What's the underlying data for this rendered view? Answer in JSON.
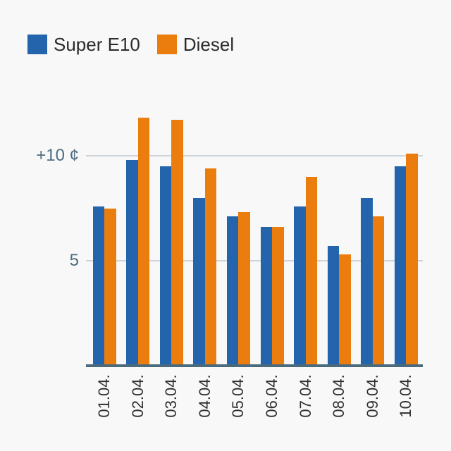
{
  "colors": {
    "background": "#f8f8f8",
    "super_e10": "#2364ac",
    "diesel": "#eb7d0e",
    "axis_line": "#4b6b7d",
    "gridline": "#ccd4da",
    "y_tick_label": "#4e6d82",
    "x_tick_label": "#303030",
    "legend_text": "#2b2b2b"
  },
  "legend": {
    "items": [
      {
        "label": "Super E10",
        "color": "#2364ac"
      },
      {
        "label": "Diesel",
        "color": "#eb7d0e"
      }
    ]
  },
  "chart_data": {
    "type": "bar",
    "title": "",
    "unit": "¢",
    "categories": [
      "01.04.",
      "02.04.",
      "03.04.",
      "04.04.",
      "05.04.",
      "06.04.",
      "07.04.",
      "08.04.",
      "09.04.",
      "10.04."
    ],
    "series": [
      {
        "name": "Super E10",
        "color": "#2364ac",
        "values": [
          7.6,
          9.8,
          9.5,
          8.0,
          7.1,
          6.6,
          7.6,
          5.7,
          8.0,
          9.5
        ]
      },
      {
        "name": "Diesel",
        "color": "#eb7d0e",
        "values": [
          7.5,
          11.8,
          11.7,
          9.4,
          7.3,
          6.6,
          9.0,
          5.3,
          7.1,
          10.1
        ]
      }
    ],
    "y_ticks": [
      {
        "value": 5,
        "label": "5"
      },
      {
        "value": 10,
        "label": "+10 ¢"
      }
    ],
    "xlabel": "",
    "ylabel": "",
    "ylim": [
      0,
      12.6
    ],
    "grid": "horizontal",
    "legend_position": "top-left"
  }
}
